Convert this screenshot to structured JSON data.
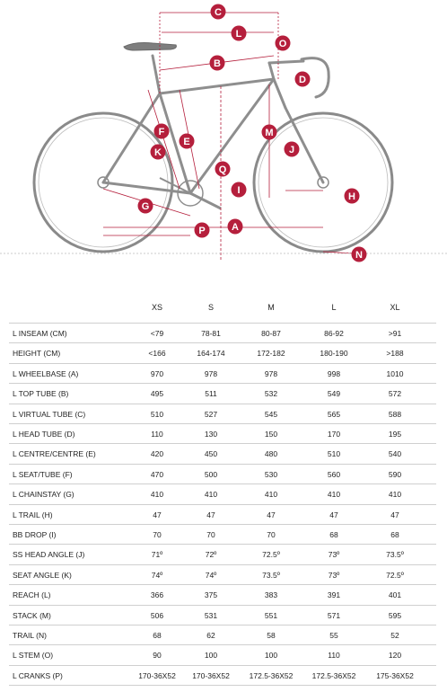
{
  "diagram": {
    "labels": {
      "A": "A",
      "B": "B",
      "C": "C",
      "D": "D",
      "E": "E",
      "F": "F",
      "G": "G",
      "H": "H",
      "I": "I",
      "J": "J",
      "K": "K",
      "L": "L",
      "M": "M",
      "N": "N",
      "O": "O",
      "P": "P",
      "Q": "Q"
    },
    "accent_color": "#b51f3c",
    "frame_color": "#9a9a9a"
  },
  "table": {
    "sizes": [
      "XS",
      "S",
      "M",
      "L",
      "XL"
    ],
    "rows": [
      {
        "label": "L INSEAM (CM)",
        "values": [
          "<79",
          "78-81",
          "80-87",
          "86-92",
          ">91"
        ]
      },
      {
        "label": "HEIGHT (CM)",
        "values": [
          "<166",
          "164-174",
          "172-182",
          "180-190",
          ">188"
        ]
      },
      {
        "label": "L WHEELBASE (A)",
        "values": [
          "970",
          "978",
          "978",
          "998",
          "1010"
        ]
      },
      {
        "label": "L TOP TUBE (B)",
        "values": [
          "495",
          "511",
          "532",
          "549",
          "572"
        ]
      },
      {
        "label": "L VIRTUAL TUBE (C)",
        "values": [
          "510",
          "527",
          "545",
          "565",
          "588"
        ]
      },
      {
        "label": "L HEAD TUBE (D)",
        "values": [
          "110",
          "130",
          "150",
          "170",
          "195"
        ]
      },
      {
        "label": "L CENTRE/CENTRE (E)",
        "values": [
          "420",
          "450",
          "480",
          "510",
          "540"
        ]
      },
      {
        "label": "L SEAT/TUBE (F)",
        "values": [
          "470",
          "500",
          "530",
          "560",
          "590"
        ]
      },
      {
        "label": "L CHAINSTAY (G)",
        "values": [
          "410",
          "410",
          "410",
          "410",
          "410"
        ]
      },
      {
        "label": "L TRAIL (H)",
        "values": [
          "47",
          "47",
          "47",
          "47",
          "47"
        ]
      },
      {
        "label": "BB DROP (I)",
        "values": [
          "70",
          "70",
          "70",
          "68",
          "68"
        ]
      },
      {
        "label": "SS HEAD ANGLE (J)",
        "values": [
          "71º",
          "72º",
          "72.5º",
          "73º",
          "73.5º"
        ]
      },
      {
        "label": "SEAT ANGLE (K)",
        "values": [
          "74º",
          "74º",
          "73.5º",
          "73º",
          "72.5º"
        ]
      },
      {
        "label": "REACH (L)",
        "values": [
          "366",
          "375",
          "383",
          "391",
          "401"
        ]
      },
      {
        "label": "STACK (M)",
        "values": [
          "506",
          "531",
          "551",
          "571",
          "595"
        ]
      },
      {
        "label": "TRAIL (N)",
        "values": [
          "68",
          "62",
          "58",
          "55",
          "52"
        ]
      },
      {
        "label": "L STEM (O)",
        "values": [
          "90",
          "100",
          "100",
          "110",
          "120"
        ]
      },
      {
        "label": "L CRANKS (P)",
        "values": [
          "170-36X52",
          "170-36X52",
          "172.5-36X52",
          "172.5-36X52",
          "175-36X52"
        ]
      }
    ]
  }
}
